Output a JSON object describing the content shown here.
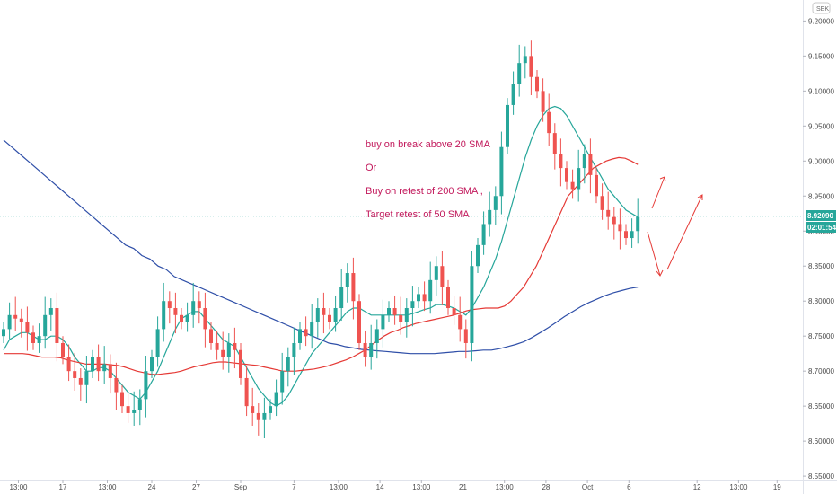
{
  "chart_data": {
    "type": "candlestick",
    "scale_label": "SEK",
    "ylim": [
      8.545,
      9.23
    ],
    "y_ticks": [
      8.55,
      8.6,
      8.65,
      8.7,
      8.75,
      8.8,
      8.85,
      8.9,
      8.95,
      9.0,
      9.05,
      9.1,
      9.15,
      9.2
    ],
    "y_tick_labels": [
      "8.55000",
      "8.60000",
      "8.65000",
      "8.70000",
      "8.75000",
      "8.80000",
      "8.85000",
      "8.90000",
      "8.95000",
      "9.00000",
      "9.05000",
      "9.10000",
      "9.15000",
      "9.20000"
    ],
    "x_tick_labels": [
      "13:00",
      "17",
      "13:00",
      "24",
      "27",
      "Sep",
      "7",
      "13:00",
      "14",
      "13:00",
      "21",
      "13:00",
      "28",
      "Oct",
      "6",
      "12",
      "13:00",
      "19"
    ],
    "x_tick_positions": [
      2.5,
      10,
      17.5,
      25,
      32.5,
      40,
      49,
      56.5,
      63.5,
      70.5,
      77.5,
      84.5,
      91.5,
      98.5,
      105.5,
      117,
      124,
      130.5
    ],
    "candle_count": 108,
    "close_prices": [
      8.76,
      8.78,
      8.775,
      8.77,
      8.755,
      8.74,
      8.75,
      8.78,
      8.79,
      8.74,
      8.72,
      8.7,
      8.69,
      8.68,
      8.7,
      8.72,
      8.7,
      8.71,
      8.69,
      8.67,
      8.65,
      8.64,
      8.645,
      8.66,
      8.7,
      8.72,
      8.76,
      8.8,
      8.79,
      8.78,
      8.77,
      8.78,
      8.8,
      8.79,
      8.76,
      8.74,
      8.73,
      8.72,
      8.74,
      8.73,
      8.69,
      8.65,
      8.64,
      8.63,
      8.64,
      8.65,
      8.67,
      8.7,
      8.72,
      8.74,
      8.76,
      8.75,
      8.77,
      8.79,
      8.78,
      8.77,
      8.79,
      8.82,
      8.84,
      8.8,
      8.74,
      8.72,
      8.74,
      8.76,
      8.78,
      8.79,
      8.78,
      8.77,
      8.79,
      8.8,
      8.81,
      8.8,
      8.83,
      8.85,
      8.82,
      8.79,
      8.78,
      8.76,
      8.74,
      8.85,
      8.88,
      8.91,
      8.93,
      8.95,
      9.02,
      9.08,
      9.11,
      9.14,
      9.15,
      9.12,
      9.1,
      9.07,
      9.04,
      9.01,
      8.99,
      8.97,
      8.96,
      8.99,
      9.01,
      8.98,
      8.95,
      8.93,
      8.92,
      8.91,
      8.9,
      8.89,
      8.9,
      8.92
    ],
    "series": [
      {
        "name": "",
        "color": "#26a69a",
        "values": [
          8.73,
          8.745,
          8.75,
          8.755,
          8.755,
          8.75,
          8.745,
          8.745,
          8.75,
          8.75,
          8.745,
          8.735,
          8.72,
          8.71,
          8.7,
          8.7,
          8.705,
          8.705,
          8.7,
          8.69,
          8.68,
          8.67,
          8.665,
          8.66,
          8.67,
          8.685,
          8.7,
          8.72,
          8.74,
          8.76,
          8.775,
          8.78,
          8.785,
          8.785,
          8.775,
          8.765,
          8.755,
          8.745,
          8.74,
          8.735,
          8.72,
          8.705,
          8.69,
          8.675,
          8.665,
          8.655,
          8.65,
          8.655,
          8.665,
          8.68,
          8.695,
          8.71,
          8.725,
          8.735,
          8.745,
          8.755,
          8.765,
          8.775,
          8.785,
          8.79,
          8.79,
          8.785,
          8.78,
          8.78,
          8.78,
          8.78,
          8.78,
          8.78,
          8.78,
          8.782,
          8.785,
          8.788,
          8.79,
          8.795,
          8.795,
          8.793,
          8.79,
          8.785,
          8.78,
          8.79,
          8.805,
          8.82,
          8.84,
          8.86,
          8.885,
          8.915,
          8.945,
          8.975,
          9.005,
          9.03,
          9.05,
          9.065,
          9.075,
          9.078,
          9.075,
          9.065,
          9.05,
          9.035,
          9.02,
          9.005,
          8.99,
          8.975,
          8.96,
          8.95,
          8.94,
          8.93,
          8.925,
          8.92
        ]
      },
      {
        "name": "",
        "color": "#e53935",
        "values": [
          8.725,
          8.725,
          8.725,
          8.725,
          8.724,
          8.722,
          8.72,
          8.72,
          8.72,
          8.719,
          8.716,
          8.714,
          8.712,
          8.71,
          8.71,
          8.71,
          8.71,
          8.709,
          8.708,
          8.706,
          8.703,
          8.7,
          8.698,
          8.696,
          8.695,
          8.696,
          8.697,
          8.698,
          8.7,
          8.703,
          8.706,
          8.708,
          8.71,
          8.712,
          8.713,
          8.713,
          8.712,
          8.711,
          8.71,
          8.709,
          8.708,
          8.706,
          8.704,
          8.702,
          8.7,
          8.7,
          8.7,
          8.701,
          8.702,
          8.703,
          8.705,
          8.707,
          8.71,
          8.713,
          8.716,
          8.72,
          8.725,
          8.73,
          8.737,
          8.744,
          8.75,
          8.755,
          8.758,
          8.762,
          8.765,
          8.768,
          8.77,
          8.772,
          8.774,
          8.776,
          8.778,
          8.78,
          8.783,
          8.786,
          8.788,
          8.789,
          8.79,
          8.79,
          8.79,
          8.793,
          8.8,
          8.81,
          8.82,
          8.835,
          8.85,
          8.87,
          8.89,
          8.91,
          8.93,
          8.95,
          8.96,
          8.97,
          8.98,
          8.99,
          8.995,
          9.0,
          9.003,
          9.005,
          9.004,
          9.0,
          8.995
        ]
      },
      {
        "name": "",
        "color": "#2f4fa8",
        "values": [
          9.03,
          9.02,
          9.01,
          9.0,
          8.99,
          8.98,
          8.97,
          8.96,
          8.95,
          8.94,
          8.93,
          8.92,
          8.91,
          8.9,
          8.89,
          8.88,
          8.875,
          8.865,
          8.86,
          8.85,
          8.845,
          8.835,
          8.83,
          8.825,
          8.82,
          8.815,
          8.81,
          8.805,
          8.8,
          8.795,
          8.79,
          8.785,
          8.78,
          8.775,
          8.77,
          8.765,
          8.76,
          8.755,
          8.75,
          8.745,
          8.74,
          8.738,
          8.735,
          8.733,
          8.731,
          8.73,
          8.729,
          8.728,
          8.727,
          8.726,
          8.725,
          8.725,
          8.725,
          8.725,
          8.726,
          8.727,
          8.728,
          8.728,
          8.729,
          8.73,
          8.73,
          8.732,
          8.735,
          8.738,
          8.742,
          8.748,
          8.755,
          8.762,
          8.77,
          8.778,
          8.785,
          8.792,
          8.798,
          8.803,
          8.808,
          8.812,
          8.815,
          8.818,
          8.82
        ]
      }
    ],
    "last_price": {
      "label": "8.92090",
      "value": 8.9209,
      "color": "#26a69a"
    },
    "countdown": {
      "label": "02:01:54",
      "color": "#26a69a"
    },
    "annotations": [
      {
        "text": "buy on break above 20 SMA"
      },
      {
        "text": "Or"
      },
      {
        "text": "Buy on retest of 200 SMA ,"
      },
      {
        "text": "Target retest of 50 SMA"
      }
    ],
    "colors": {
      "up": "#26a69a",
      "down": "#ef5350",
      "annotation": "#c2185b",
      "arrow": "#e53935"
    },
    "grid": false,
    "legend": "none"
  }
}
